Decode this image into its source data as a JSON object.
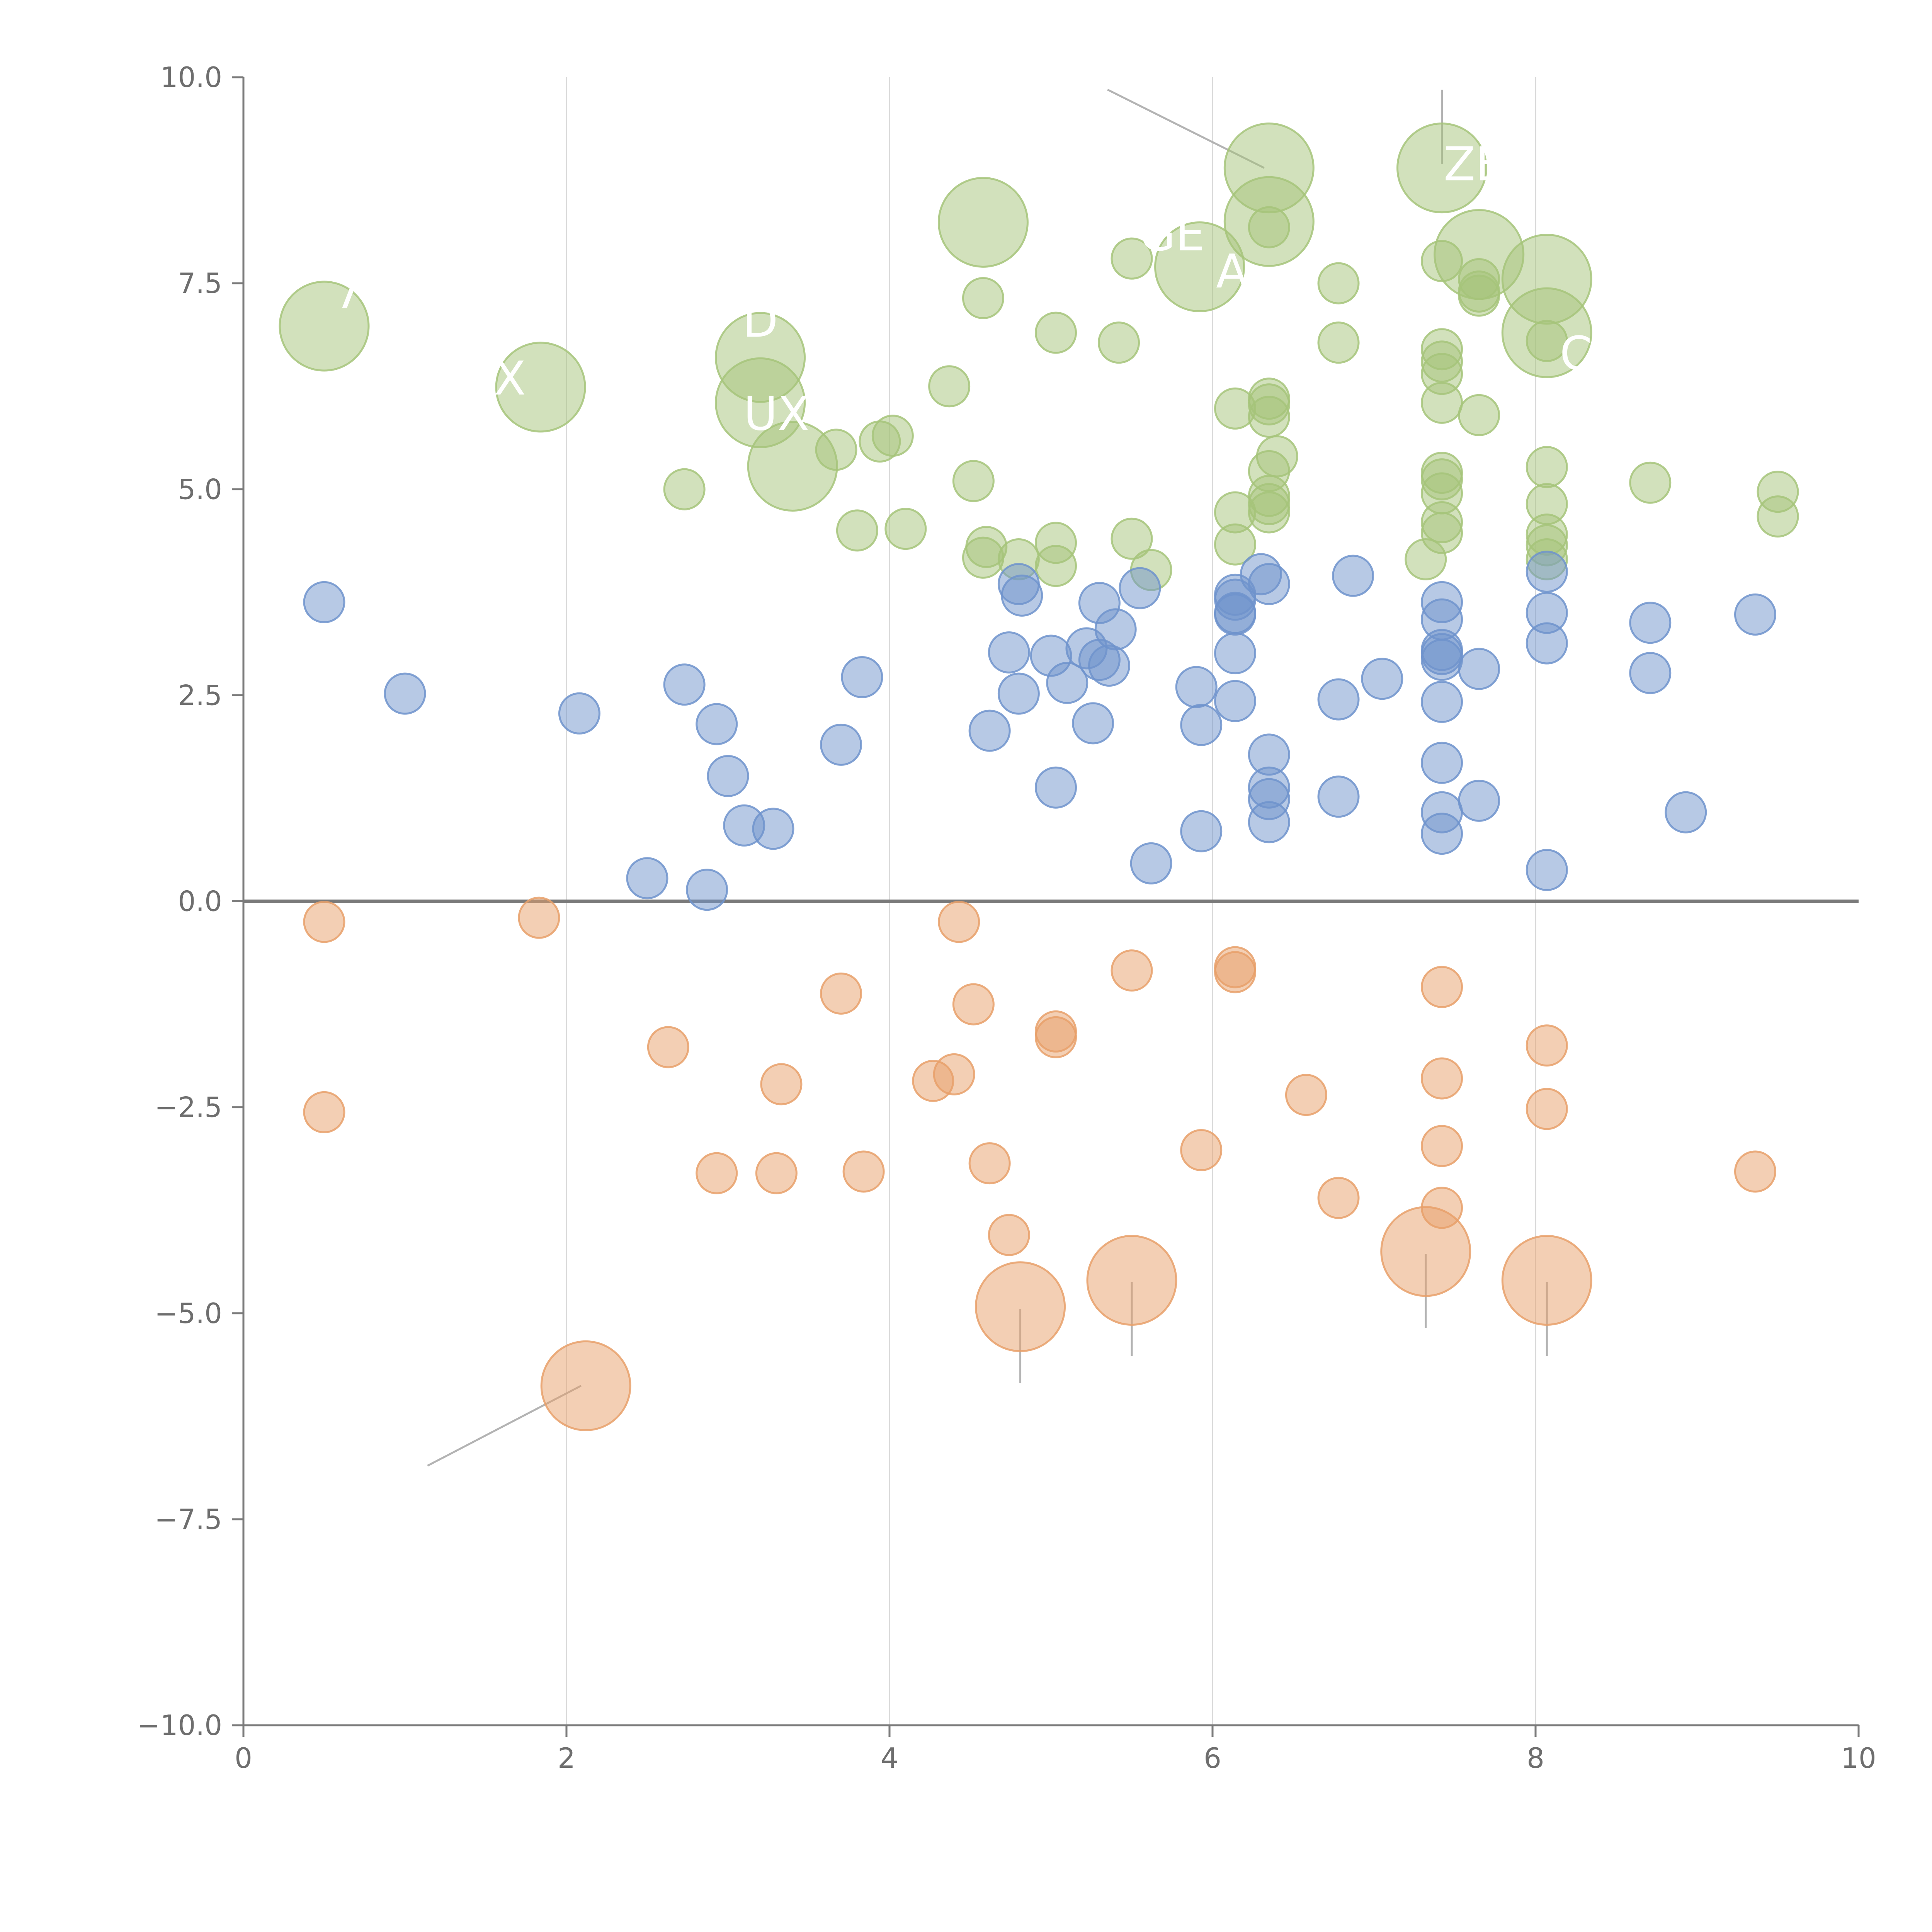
{
  "chart_data": {
    "type": "scatter",
    "title": "",
    "xlabel": "",
    "ylabel": "",
    "xlim": [
      0,
      10
    ],
    "ylim": [
      -10,
      10
    ],
    "grid": "vertical",
    "x_ticks": [
      "0",
      "2",
      "4",
      "6",
      "8",
      "10"
    ],
    "y_ticks": [
      "−10.0",
      "−7.5",
      "−5.0",
      "−2.5",
      "0.0",
      "2.5",
      "5.0",
      "7.5",
      "10.0"
    ],
    "x_tick_values": [
      0,
      2,
      4,
      6,
      8,
      10
    ],
    "y_tick_values": [
      -10,
      -7.5,
      -5,
      -2.5,
      0,
      2.5,
      5,
      7.5,
      10
    ],
    "colors": {
      "green": "#a6c47a",
      "blue": "#6f93cc",
      "orange": "#e8a06a",
      "axis": "#7a7a7a",
      "grid": "#d9d9d9"
    },
    "series": [
      {
        "name": "green",
        "color": "#a6c47a",
        "points": [
          {
            "x": 0.5,
            "y": 6.98,
            "size": 3
          },
          {
            "x": 1.84,
            "y": 6.24,
            "size": 3
          },
          {
            "x": 3.2,
            "y": 6.6,
            "size": 3
          },
          {
            "x": 3.2,
            "y": 6.05,
            "size": 3
          },
          {
            "x": 3.4,
            "y": 5.28,
            "size": 3
          },
          {
            "x": 4.58,
            "y": 8.24,
            "size": 3
          },
          {
            "x": 5.92,
            "y": 7.7,
            "size": 3
          },
          {
            "x": 6.35,
            "y": 8.9,
            "size": 3
          },
          {
            "x": 6.35,
            "y": 8.25,
            "size": 3
          },
          {
            "x": 7.42,
            "y": 8.9,
            "size": 3
          },
          {
            "x": 7.65,
            "y": 7.85,
            "size": 3
          },
          {
            "x": 8.07,
            "y": 7.55,
            "size": 3
          },
          {
            "x": 8.07,
            "y": 6.9,
            "size": 3
          },
          {
            "x": 2.73,
            "y": 5.0,
            "size": 1
          },
          {
            "x": 3.67,
            "y": 5.48,
            "size": 1
          },
          {
            "x": 3.8,
            "y": 4.5,
            "size": 1
          },
          {
            "x": 3.94,
            "y": 5.58,
            "size": 1
          },
          {
            "x": 4.02,
            "y": 5.65,
            "size": 1
          },
          {
            "x": 4.1,
            "y": 4.52,
            "size": 1
          },
          {
            "x": 4.37,
            "y": 6.25,
            "size": 1
          },
          {
            "x": 4.52,
            "y": 5.1,
            "size": 1
          },
          {
            "x": 4.58,
            "y": 7.32,
            "size": 1
          },
          {
            "x": 4.6,
            "y": 4.3,
            "size": 1
          },
          {
            "x": 4.58,
            "y": 4.17,
            "size": 1
          },
          {
            "x": 4.8,
            "y": 4.15,
            "size": 1
          },
          {
            "x": 5.03,
            "y": 6.9,
            "size": 1
          },
          {
            "x": 5.03,
            "y": 4.35,
            "size": 1
          },
          {
            "x": 5.03,
            "y": 4.07,
            "size": 1
          },
          {
            "x": 5.42,
            "y": 6.78,
            "size": 1
          },
          {
            "x": 5.5,
            "y": 7.8,
            "size": 1
          },
          {
            "x": 5.5,
            "y": 4.4,
            "size": 1
          },
          {
            "x": 5.62,
            "y": 4.02,
            "size": 1
          },
          {
            "x": 6.14,
            "y": 5.98,
            "size": 1
          },
          {
            "x": 6.14,
            "y": 4.72,
            "size": 1
          },
          {
            "x": 6.14,
            "y": 4.33,
            "size": 1
          },
          {
            "x": 6.35,
            "y": 8.18,
            "size": 1
          },
          {
            "x": 6.35,
            "y": 6.1,
            "size": 1
          },
          {
            "x": 6.35,
            "y": 6.03,
            "size": 1
          },
          {
            "x": 6.35,
            "y": 5.88,
            "size": 1
          },
          {
            "x": 6.4,
            "y": 5.4,
            "size": 1
          },
          {
            "x": 6.35,
            "y": 5.22,
            "size": 1
          },
          {
            "x": 6.35,
            "y": 4.92,
            "size": 1
          },
          {
            "x": 6.35,
            "y": 4.82,
            "size": 1
          },
          {
            "x": 6.35,
            "y": 4.72,
            "size": 1
          },
          {
            "x": 6.78,
            "y": 7.5,
            "size": 1
          },
          {
            "x": 6.78,
            "y": 6.78,
            "size": 1
          },
          {
            "x": 7.42,
            "y": 7.77,
            "size": 1
          },
          {
            "x": 7.42,
            "y": 6.7,
            "size": 1
          },
          {
            "x": 7.42,
            "y": 6.55,
            "size": 1
          },
          {
            "x": 7.42,
            "y": 6.4,
            "size": 1
          },
          {
            "x": 7.42,
            "y": 6.05,
            "size": 1
          },
          {
            "x": 7.42,
            "y": 5.2,
            "size": 1
          },
          {
            "x": 7.42,
            "y": 5.12,
            "size": 1
          },
          {
            "x": 7.42,
            "y": 4.95,
            "size": 1
          },
          {
            "x": 7.42,
            "y": 4.6,
            "size": 1
          },
          {
            "x": 7.42,
            "y": 4.47,
            "size": 1
          },
          {
            "x": 7.32,
            "y": 4.15,
            "size": 1
          },
          {
            "x": 7.65,
            "y": 7.55,
            "size": 1
          },
          {
            "x": 7.65,
            "y": 7.4,
            "size": 1
          },
          {
            "x": 7.65,
            "y": 7.35,
            "size": 1
          },
          {
            "x": 7.65,
            "y": 5.9,
            "size": 1
          },
          {
            "x": 8.07,
            "y": 6.8,
            "size": 1
          },
          {
            "x": 8.07,
            "y": 5.27,
            "size": 1
          },
          {
            "x": 8.07,
            "y": 4.82,
            "size": 1
          },
          {
            "x": 8.07,
            "y": 4.45,
            "size": 1
          },
          {
            "x": 8.07,
            "y": 4.32,
            "size": 1
          },
          {
            "x": 8.07,
            "y": 4.15,
            "size": 1
          },
          {
            "x": 8.71,
            "y": 5.08,
            "size": 1
          },
          {
            "x": 9.5,
            "y": 4.97,
            "size": 1
          },
          {
            "x": 9.5,
            "y": 4.67,
            "size": 1
          }
        ]
      },
      {
        "name": "blue",
        "color": "#6f93cc",
        "points": [
          {
            "x": 0.5,
            "y": 3.63,
            "size": 1
          },
          {
            "x": 1.0,
            "y": 2.52,
            "size": 1
          },
          {
            "x": 2.08,
            "y": 2.28,
            "size": 1
          },
          {
            "x": 2.5,
            "y": 0.28,
            "size": 1
          },
          {
            "x": 2.73,
            "y": 2.63,
            "size": 1
          },
          {
            "x": 2.87,
            "y": 0.14,
            "size": 1
          },
          {
            "x": 2.93,
            "y": 2.15,
            "size": 1
          },
          {
            "x": 3.0,
            "y": 1.52,
            "size": 1
          },
          {
            "x": 3.1,
            "y": 0.92,
            "size": 1
          },
          {
            "x": 3.28,
            "y": 0.88,
            "size": 1
          },
          {
            "x": 3.7,
            "y": 1.9,
            "size": 1
          },
          {
            "x": 3.83,
            "y": 2.72,
            "size": 1
          },
          {
            "x": 4.62,
            "y": 2.07,
            "size": 1
          },
          {
            "x": 4.74,
            "y": 3.02,
            "size": 1
          },
          {
            "x": 4.8,
            "y": 3.85,
            "size": 1
          },
          {
            "x": 4.82,
            "y": 3.71,
            "size": 1
          },
          {
            "x": 4.8,
            "y": 2.52,
            "size": 1
          },
          {
            "x": 5.0,
            "y": 2.98,
            "size": 1
          },
          {
            "x": 5.03,
            "y": 1.38,
            "size": 1
          },
          {
            "x": 5.1,
            "y": 2.65,
            "size": 1
          },
          {
            "x": 5.22,
            "y": 3.07,
            "size": 1
          },
          {
            "x": 5.26,
            "y": 2.16,
            "size": 1
          },
          {
            "x": 5.3,
            "y": 2.93,
            "size": 1
          },
          {
            "x": 5.36,
            "y": 2.86,
            "size": 1
          },
          {
            "x": 5.4,
            "y": 3.3,
            "size": 1
          },
          {
            "x": 5.3,
            "y": 3.62,
            "size": 1
          },
          {
            "x": 5.55,
            "y": 3.8,
            "size": 1
          },
          {
            "x": 5.62,
            "y": 0.46,
            "size": 1
          },
          {
            "x": 5.9,
            "y": 2.6,
            "size": 1
          },
          {
            "x": 5.93,
            "y": 2.14,
            "size": 1
          },
          {
            "x": 5.93,
            "y": 0.85,
            "size": 1
          },
          {
            "x": 6.14,
            "y": 3.72,
            "size": 1
          },
          {
            "x": 6.14,
            "y": 3.66,
            "size": 1
          },
          {
            "x": 6.14,
            "y": 3.5,
            "size": 1
          },
          {
            "x": 6.14,
            "y": 3.48,
            "size": 1
          },
          {
            "x": 6.14,
            "y": 3.01,
            "size": 1
          },
          {
            "x": 6.14,
            "y": 2.43,
            "size": 1
          },
          {
            "x": 6.3,
            "y": 3.97,
            "size": 1
          },
          {
            "x": 6.35,
            "y": 3.85,
            "size": 1
          },
          {
            "x": 6.35,
            "y": 1.78,
            "size": 1
          },
          {
            "x": 6.35,
            "y": 1.38,
            "size": 1
          },
          {
            "x": 6.35,
            "y": 1.24,
            "size": 1
          },
          {
            "x": 6.35,
            "y": 0.96,
            "size": 1
          },
          {
            "x": 6.78,
            "y": 2.45,
            "size": 1
          },
          {
            "x": 6.78,
            "y": 1.27,
            "size": 1
          },
          {
            "x": 6.87,
            "y": 3.95,
            "size": 1
          },
          {
            "x": 7.05,
            "y": 2.7,
            "size": 1
          },
          {
            "x": 7.42,
            "y": 3.63,
            "size": 1
          },
          {
            "x": 7.42,
            "y": 3.42,
            "size": 1
          },
          {
            "x": 7.42,
            "y": 3.05,
            "size": 1
          },
          {
            "x": 7.42,
            "y": 3.0,
            "size": 1
          },
          {
            "x": 7.42,
            "y": 2.93,
            "size": 1
          },
          {
            "x": 7.42,
            "y": 2.42,
            "size": 1
          },
          {
            "x": 7.42,
            "y": 1.68,
            "size": 1
          },
          {
            "x": 7.42,
            "y": 1.08,
            "size": 1
          },
          {
            "x": 7.42,
            "y": 0.82,
            "size": 1
          },
          {
            "x": 7.65,
            "y": 2.82,
            "size": 1
          },
          {
            "x": 7.65,
            "y": 1.22,
            "size": 1
          },
          {
            "x": 8.07,
            "y": 4.0,
            "size": 1
          },
          {
            "x": 8.07,
            "y": 3.5,
            "size": 1
          },
          {
            "x": 8.07,
            "y": 3.13,
            "size": 1
          },
          {
            "x": 8.07,
            "y": 0.38,
            "size": 1
          },
          {
            "x": 8.71,
            "y": 3.38,
            "size": 1
          },
          {
            "x": 8.71,
            "y": 2.77,
            "size": 1
          },
          {
            "x": 8.93,
            "y": 1.08,
            "size": 1
          },
          {
            "x": 9.36,
            "y": 3.48,
            "size": 1
          }
        ]
      },
      {
        "name": "orange",
        "color": "#e8a06a",
        "points": [
          {
            "x": 0.5,
            "y": -0.25,
            "size": 1
          },
          {
            "x": 0.5,
            "y": -2.56,
            "size": 1
          },
          {
            "x": 1.83,
            "y": -0.2,
            "size": 1
          },
          {
            "x": 2.63,
            "y": -1.77,
            "size": 1
          },
          {
            "x": 2.93,
            "y": -3.3,
            "size": 1
          },
          {
            "x": 3.3,
            "y": -3.3,
            "size": 1
          },
          {
            "x": 3.33,
            "y": -2.22,
            "size": 1
          },
          {
            "x": 3.7,
            "y": -1.12,
            "size": 1
          },
          {
            "x": 3.84,
            "y": -3.28,
            "size": 1
          },
          {
            "x": 4.27,
            "y": -2.18,
            "size": 1
          },
          {
            "x": 4.4,
            "y": -2.1,
            "size": 1
          },
          {
            "x": 4.43,
            "y": -0.25,
            "size": 1
          },
          {
            "x": 4.52,
            "y": -1.25,
            "size": 1
          },
          {
            "x": 4.62,
            "y": -3.18,
            "size": 1
          },
          {
            "x": 4.74,
            "y": -4.05,
            "size": 1
          },
          {
            "x": 5.03,
            "y": -1.58,
            "size": 1
          },
          {
            "x": 5.03,
            "y": -1.65,
            "size": 1
          },
          {
            "x": 5.5,
            "y": -0.84,
            "size": 1
          },
          {
            "x": 5.93,
            "y": -3.02,
            "size": 1
          },
          {
            "x": 6.14,
            "y": -0.8,
            "size": 1
          },
          {
            "x": 6.14,
            "y": -0.86,
            "size": 1
          },
          {
            "x": 6.58,
            "y": -2.35,
            "size": 1
          },
          {
            "x": 6.78,
            "y": -3.6,
            "size": 1
          },
          {
            "x": 7.42,
            "y": -1.04,
            "size": 1
          },
          {
            "x": 7.42,
            "y": -2.15,
            "size": 1
          },
          {
            "x": 7.42,
            "y": -2.97,
            "size": 1
          },
          {
            "x": 7.42,
            "y": -3.72,
            "size": 1
          },
          {
            "x": 8.07,
            "y": -1.75,
            "size": 1
          },
          {
            "x": 8.07,
            "y": -2.52,
            "size": 1
          },
          {
            "x": 9.36,
            "y": -3.28,
            "size": 1
          },
          {
            "x": 2.12,
            "y": -5.88,
            "size": 3
          },
          {
            "x": 4.81,
            "y": -4.92,
            "size": 3
          },
          {
            "x": 5.5,
            "y": -4.6,
            "size": 3
          },
          {
            "x": 7.32,
            "y": -4.25,
            "size": 3
          },
          {
            "x": 8.07,
            "y": -4.6,
            "size": 3
          }
        ]
      }
    ],
    "annotations": [
      {
        "text": "X",
        "x": 1.65,
        "y": 6.15
      },
      {
        "text": "UX",
        "x": 3.3,
        "y": 5.72
      },
      {
        "text": "GE",
        "x": 5.75,
        "y": 7.9
      },
      {
        "text": "ZE",
        "x": 7.62,
        "y": 8.75
      },
      {
        "text": "7",
        "x": 0.65,
        "y": 7.2
      },
      {
        "text": "D",
        "x": 3.2,
        "y": 6.85
      },
      {
        "text": "A",
        "x": 6.12,
        "y": 7.45
      },
      {
        "text": "C",
        "x": 8.25,
        "y": 6.45
      }
    ],
    "leader_lines": [
      {
        "x1": 5.35,
        "y1": 9.85,
        "x2": 6.32,
        "y2": 8.9
      },
      {
        "x1": 7.42,
        "y1": 9.85,
        "x2": 7.42,
        "y2": 8.95
      },
      {
        "x1": 1.14,
        "y1": -6.85,
        "x2": 2.09,
        "y2": -5.88
      },
      {
        "x1": 4.81,
        "y1": -4.95,
        "x2": 4.81,
        "y2": -5.85
      },
      {
        "x1": 5.5,
        "y1": -4.62,
        "x2": 5.5,
        "y2": -5.52
      },
      {
        "x1": 7.32,
        "y1": -4.28,
        "x2": 7.32,
        "y2": -5.18
      },
      {
        "x1": 8.07,
        "y1": -4.62,
        "x2": 8.07,
        "y2": -5.52
      }
    ]
  }
}
